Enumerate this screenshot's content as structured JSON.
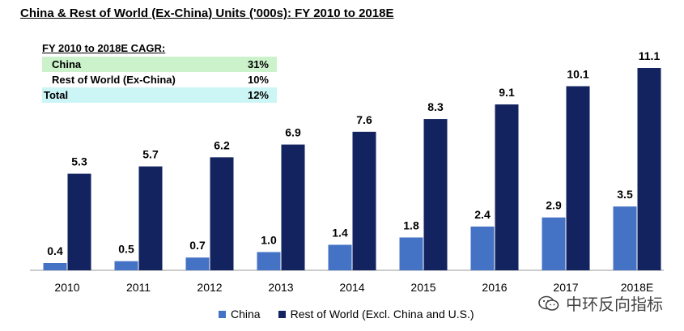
{
  "title": "China & Rest of World (Ex-China) Units ('000s): FY 2010 to 2018E",
  "cagr_table": {
    "heading": "FY 2010 to 2018E CAGR:",
    "rows": [
      {
        "label": "China",
        "value": "31%",
        "bg": "#ccf2cc"
      },
      {
        "label": "Rest of World (Ex-China)",
        "value": "10%",
        "bg": "#ffffff"
      },
      {
        "label": "Total",
        "value": "12%",
        "bg": "#ccf5f5"
      }
    ]
  },
  "legend": {
    "china": "China",
    "row": "Rest of World (Excl. China and U.S.)"
  },
  "watermark": {
    "text": "中环反向指标",
    "icon": "wechat-icon"
  },
  "colors": {
    "china": "#4472c4",
    "row": "#13235f"
  },
  "chart_data": {
    "type": "bar",
    "categories": [
      "2010",
      "2011",
      "2012",
      "2013",
      "2014",
      "2015",
      "2016",
      "2017",
      "2018E"
    ],
    "series": [
      {
        "name": "China",
        "values": [
          0.4,
          0.5,
          0.7,
          1.0,
          1.4,
          1.8,
          2.4,
          2.9,
          3.5
        ]
      },
      {
        "name": "Rest of World (Excl. China and U.S.)",
        "values": [
          5.3,
          5.7,
          6.2,
          6.9,
          7.6,
          8.3,
          9.1,
          10.1,
          11.1
        ]
      }
    ],
    "value_labels": {
      "China": [
        "0.4",
        "0.5",
        "0.7",
        "1.0",
        "1.4",
        "1.8",
        "2.4",
        "2.9",
        "3.5"
      ],
      "Rest of World (Excl. China and U.S.)": [
        "5.3",
        "5.7",
        "6.2",
        "6.9",
        "7.6",
        "8.3",
        "9.1",
        "10.1",
        "11.1"
      ]
    },
    "ylim": [
      0,
      11.1
    ],
    "grid": false,
    "legend_position": "bottom"
  }
}
